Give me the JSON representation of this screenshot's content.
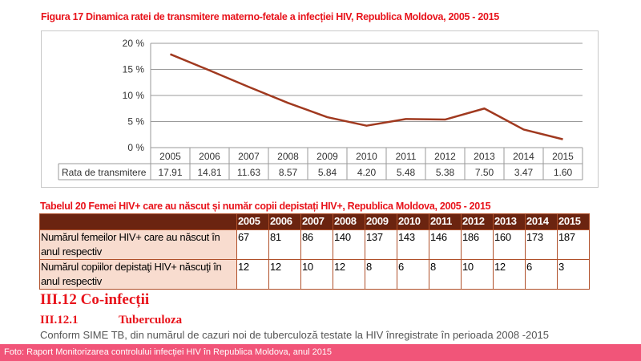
{
  "figure_title": "Figura 17 Dinamica ratei de transmitere materno-fetale a infecției HIV, Republica Moldova, 2005 - 2015",
  "chart_data": {
    "type": "line",
    "categories": [
      "2005",
      "2006",
      "2007",
      "2008",
      "2009",
      "2010",
      "2011",
      "2012",
      "2013",
      "2014",
      "2015"
    ],
    "series": [
      {
        "name": "Rata de transmitere",
        "values": [
          17.91,
          14.81,
          11.63,
          8.57,
          5.84,
          4.2,
          5.48,
          5.38,
          7.5,
          3.47,
          1.6
        ],
        "labels": [
          "17.91",
          "14.81",
          "11.63",
          "8.57",
          "5.84",
          "4.20",
          "5.48",
          "5.38",
          "7.50",
          "3.47",
          "1.60"
        ]
      }
    ],
    "yticks": [
      "0 %",
      "5 %",
      "10 %",
      "15 %",
      "20 %"
    ],
    "ylim": [
      0,
      20
    ],
    "grid": true,
    "line_color": "#a0391f",
    "data_table": true
  },
  "table": {
    "title": "Tabelul 20 Femei HIV+ care au născut și număr copii depistați HIV+, Republica Moldova, 2005 - 2015",
    "header": [
      "2005",
      "2006",
      "2007",
      "2008",
      "2009",
      "2010",
      "2011",
      "2012",
      "2013",
      "2014",
      "2015"
    ],
    "rows": [
      {
        "label": "Numărul femeilor HIV+ care au născut în anul respectiv",
        "values": [
          "67",
          "81",
          "86",
          "140",
          "137",
          "143",
          "146",
          "186",
          "160",
          "173",
          "187"
        ]
      },
      {
        "label": "Numărul copiilor depistaţi HIV+ născuţi în anul respectiv",
        "values": [
          "12",
          "12",
          "10",
          "12",
          "8",
          "6",
          "8",
          "10",
          "12",
          "6",
          "3"
        ]
      }
    ]
  },
  "section_heading": "III.12 Co-infecții",
  "subsection_number": "III.12.1",
  "subsection_title": "Tuberculoza",
  "body_text": "Conform SIME TB, din numărul de cazuri noi de tuberculoză testate la HIV înregistrate în perioada 2008 -2015",
  "caption": "Foto: Raport Monitorizarea controlului infecției HIV în Republica Moldova, anul 2015"
}
